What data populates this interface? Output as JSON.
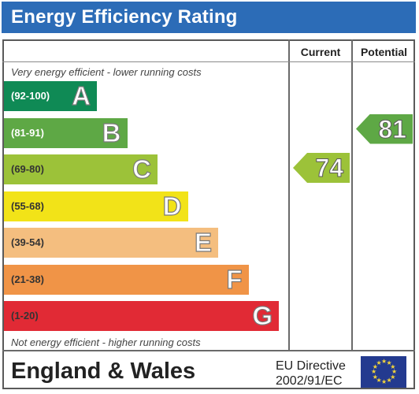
{
  "header": {
    "title": "Energy Efficiency Rating",
    "color": "#2c6cb7"
  },
  "columns": {
    "current": "Current",
    "potential": "Potential"
  },
  "notes": {
    "top": "Very energy efficient - lower running costs",
    "bottom": "Not energy efficient - higher running costs"
  },
  "chart_data": {
    "type": "bar",
    "title": "Energy Efficiency Rating",
    "bands": [
      {
        "range": "(92-100)",
        "letter": "A",
        "color": "#0f8a55",
        "range_color": "#ffffff",
        "level": 1
      },
      {
        "range": "(81-91)",
        "letter": "B",
        "color": "#5ea845",
        "range_color": "#ffffff",
        "level": 2
      },
      {
        "range": "(69-80)",
        "letter": "C",
        "color": "#9cc239",
        "range_color": "#333333",
        "level": 3
      },
      {
        "range": "(55-68)",
        "letter": "D",
        "color": "#f2e318",
        "range_color": "#333333",
        "level": 4
      },
      {
        "range": "(39-54)",
        "letter": "E",
        "color": "#f4be7f",
        "range_color": "#333333",
        "level": 5
      },
      {
        "range": "(21-38)",
        "letter": "F",
        "color": "#f09447",
        "range_color": "#333333",
        "level": 6
      },
      {
        "range": "(1-20)",
        "letter": "G",
        "color": "#e12a35",
        "range_color": "#333333",
        "level": 7
      }
    ],
    "current": {
      "value": 74,
      "band": "C",
      "color": "#9cc239"
    },
    "potential": {
      "value": 81,
      "band": "B",
      "color": "#5ea845"
    }
  },
  "footer": {
    "region": "England & Wales",
    "directive_line1": "EU Directive",
    "directive_line2": "2002/91/EC",
    "flag": "eu-flag-icon"
  }
}
